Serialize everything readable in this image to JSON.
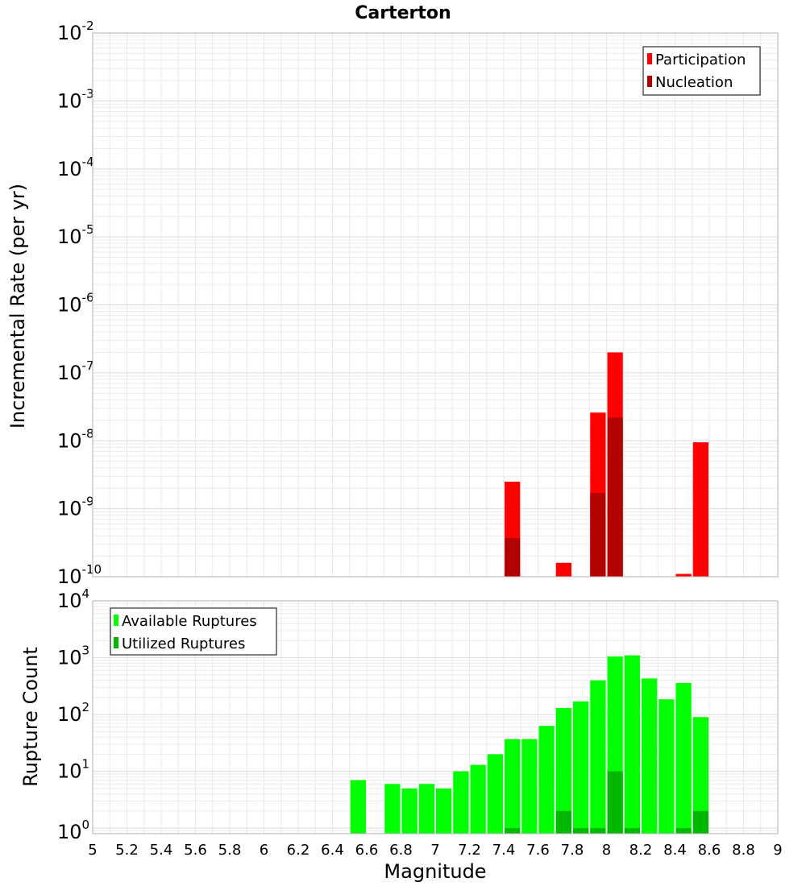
{
  "chart_data": [
    {
      "type": "bar",
      "title": "Carterton",
      "xlabel": "",
      "ylabel": "Incremental Rate (per yr)",
      "xlim": [
        5,
        9
      ],
      "ylim": [
        1e-10,
        0.01
      ],
      "yscale": "log",
      "ytick_exponents": [
        "-10",
        "-9",
        "-8",
        "-7",
        "-6",
        "-5",
        "-4",
        "-3",
        "-2"
      ],
      "bin_width": 0.1,
      "grid": true,
      "legend_position": "top-right",
      "series": [
        {
          "name": "Participation",
          "color": "#ff0000",
          "x": [
            7.45,
            7.75,
            7.95,
            8.05,
            8.45,
            8.55
          ],
          "values": [
            2.5e-09,
            1.6e-10,
            2.6e-08,
            2e-07,
            1.1e-10,
            9.5e-09
          ]
        },
        {
          "name": "Nucleation",
          "color": "#b30000",
          "x": [
            7.45,
            7.95,
            8.05
          ],
          "values": [
            3.7e-10,
            1.7e-09,
            2.2e-08
          ]
        }
      ]
    },
    {
      "type": "bar",
      "title": "",
      "xlabel": "Magnitude",
      "ylabel": "Rupture Count",
      "xlim": [
        5,
        9
      ],
      "ylim": [
        0.8,
        10000
      ],
      "yscale": "log",
      "ytick_exponents": [
        "0",
        "1",
        "2",
        "3",
        "4"
      ],
      "bin_width": 0.1,
      "grid": true,
      "legend_position": "top-left",
      "x_ticks": [
        "5",
        "5.2",
        "5.4",
        "5.6",
        "5.8",
        "6",
        "6.2",
        "6.4",
        "6.6",
        "6.8",
        "7",
        "7.2",
        "7.4",
        "7.6",
        "7.8",
        "8",
        "8.2",
        "8.4",
        "8.6",
        "8.8",
        "9"
      ],
      "series": [
        {
          "name": "Available Ruptures",
          "color": "#00ff00",
          "x": [
            6.55,
            6.75,
            6.85,
            6.95,
            7.05,
            7.15,
            7.25,
            7.35,
            7.45,
            7.55,
            7.65,
            7.75,
            7.85,
            7.95,
            8.05,
            8.15,
            8.25,
            8.35,
            8.45,
            8.55
          ],
          "values": [
            7,
            6,
            5,
            6,
            5,
            10,
            13,
            20,
            37,
            37,
            63,
            130,
            170,
            400,
            1050,
            1100,
            430,
            185,
            360,
            90
          ]
        },
        {
          "name": "Utilized Ruptures",
          "color": "#00b800",
          "x": [
            7.45,
            7.75,
            7.85,
            7.95,
            8.05,
            8.15,
            8.45,
            8.55
          ],
          "values": [
            1,
            2,
            1,
            1,
            10,
            1,
            1,
            2
          ]
        }
      ]
    }
  ]
}
